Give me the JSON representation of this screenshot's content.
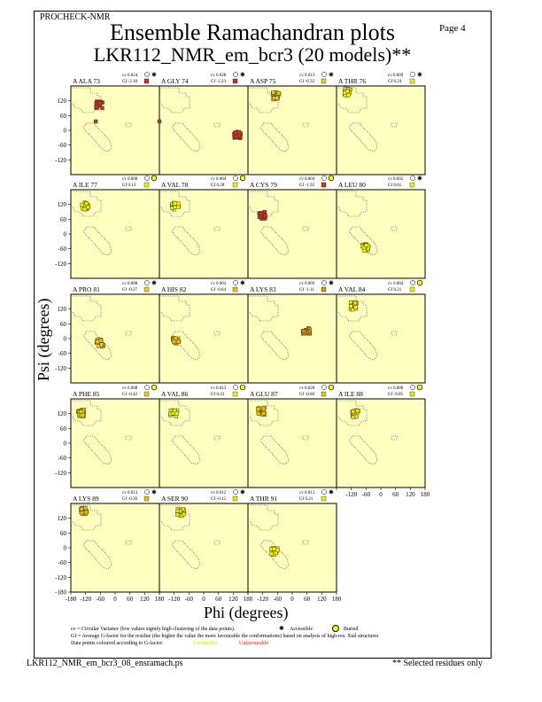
{
  "header": {
    "program": "PROCHECK-NMR",
    "page": "Page  4",
    "title": "Ensemble Ramachandran plots",
    "subtitle": "LKR112_NMR_em_bcr3 (20 models)**"
  },
  "footer": {
    "filename": "LKR112_NMR_em_bcr3_08_ensramach.ps",
    "note": "** Selected residues only"
  },
  "legend": {
    "cv_line": "cv = Circular Variance (low values signify high clustering of the data points).",
    "accessible": "Accessible",
    "buried": "Buried",
    "gf_line": "Gf = Average G-factor for the residue (the higher the value the more favourable the conformations) based on analysis of high-res. Xtal structures",
    "colour_line": "Data points coloured according to G-factor:",
    "favourable": "Favourable",
    "unfavourable": "Unfavourable",
    "colors": {
      "favourable": "#ffff00",
      "unfavourable": "#ff3030",
      "panel_bg": "#ffffc0"
    }
  },
  "chart_data": {
    "type": "scatter",
    "xlabel": "Phi (degrees)",
    "ylabel": "Psi (degrees)",
    "xlim": [
      -180,
      180
    ],
    "ylim": [
      -180,
      180
    ],
    "xticks": [
      "-180",
      "-120",
      "-60",
      "0",
      "60",
      "120",
      "180"
    ],
    "yticks": [
      "120",
      "60",
      "0",
      "-60",
      "-120",
      "-180"
    ],
    "models": 20,
    "panels": [
      {
        "residue": "A ALA 73",
        "cv": "cv 0.024",
        "gf": "Gf -2.18",
        "solvent": "accessible",
        "color": "#d03018",
        "center": [
          -65,
          104
        ],
        "extra": [
          -79,
          36
        ]
      },
      {
        "residue": "A GLY 74",
        "cv": "cv 0.028",
        "gf": "Gf -2.23",
        "solvent": "accessible",
        "color": "#d03018",
        "center": [
          137,
          -18
        ],
        "extra": [
          -180,
          36
        ]
      },
      {
        "residue": "A ASP 75",
        "cv": "cv 0.013",
        "gf": "Gf -0.32",
        "solvent": "accessible",
        "color": "#f0d000",
        "center": [
          -65,
          140
        ]
      },
      {
        "residue": "A THR 76",
        "cv": "cv 0.009",
        "gf": "Gf 0.24",
        "solvent": "accessible",
        "color": "#f0f000",
        "center": [
          -133,
          155
        ]
      },
      {
        "residue": "A ILE 77",
        "cv": "cv 0.008",
        "gf": "Gf 0.13",
        "solvent": "buried",
        "color": "#f0f000",
        "center": [
          -122,
          115
        ]
      },
      {
        "residue": "A VAL 78",
        "cv": "cv 0.004",
        "gf": "Gf 0.28",
        "solvent": "buried",
        "color": "#f0f000",
        "center": [
          -115,
          112
        ]
      },
      {
        "residue": "A CYS 79",
        "cv": "cv 0.004",
        "gf": "Gf -1.92",
        "solvent": "buried",
        "color": "#d03018",
        "center": [
          -122,
          76
        ]
      },
      {
        "residue": "A LEU 80",
        "cv": "cv 0.002",
        "gf": "Gf 0.61",
        "solvent": "accessible",
        "color": "#f0f000",
        "center": [
          -61,
          -54
        ]
      },
      {
        "residue": "A PRO 81",
        "cv": "cv 0.008",
        "gf": "Gf -0.27",
        "solvent": "accessible",
        "color": "#f0d000",
        "center": [
          -61,
          -18
        ]
      },
      {
        "residue": "A HIS 82",
        "cv": "cv 0.003",
        "gf": "Gf -0.64",
        "solvent": "accessible",
        "color": "#f0c000",
        "center": [
          -112,
          -7
        ]
      },
      {
        "residue": "A LYS 83",
        "cv": "cv 0.003",
        "gf": "Gf -1.11",
        "solvent": "accessible",
        "color": "#e09000",
        "center": [
          58,
          29
        ]
      },
      {
        "residue": "A VAL 84",
        "cv": "cv 0.004",
        "gf": "Gf 0.21",
        "solvent": "buried",
        "color": "#f0f000",
        "center": [
          -108,
          133
        ]
      },
      {
        "residue": "A PHE 85",
        "cv": "cv 0.008",
        "gf": "Gf -0.42",
        "solvent": "buried",
        "color": "#f0d000",
        "center": [
          -140,
          122
        ]
      },
      {
        "residue": "A VAL 86",
        "cv": "cv 0.013",
        "gf": "Gf 0.23",
        "solvent": "buried",
        "color": "#f0f000",
        "center": [
          -122,
          122
        ]
      },
      {
        "residue": "A GLU 87",
        "cv": "cv 0.020",
        "gf": "Gf -0.60",
        "solvent": "buried",
        "color": "#f0c000",
        "center": [
          -126,
          130
        ]
      },
      {
        "residue": "A ILE 88",
        "cv": "cv 0.008",
        "gf": "Gf -0.05",
        "solvent": "buried",
        "color": "#f0e000",
        "center": [
          -104,
          119
        ]
      },
      {
        "residue": "A LYS 89",
        "cv": "cv 0.013",
        "gf": "Gf -0.30",
        "solvent": "accessible",
        "color": "#f0c000",
        "center": [
          -126,
          151
        ]
      },
      {
        "residue": "A SER 90",
        "cv": "cv 0.012",
        "gf": "Gf -0.15",
        "solvent": "accessible",
        "color": "#f0e000",
        "center": [
          -94,
          144
        ]
      },
      {
        "residue": "A THR 91",
        "cv": "cv 0.013",
        "gf": "Gf 0.21",
        "solvent": "accessible",
        "color": "#f0f000",
        "center": [
          -72,
          -14
        ]
      }
    ]
  }
}
